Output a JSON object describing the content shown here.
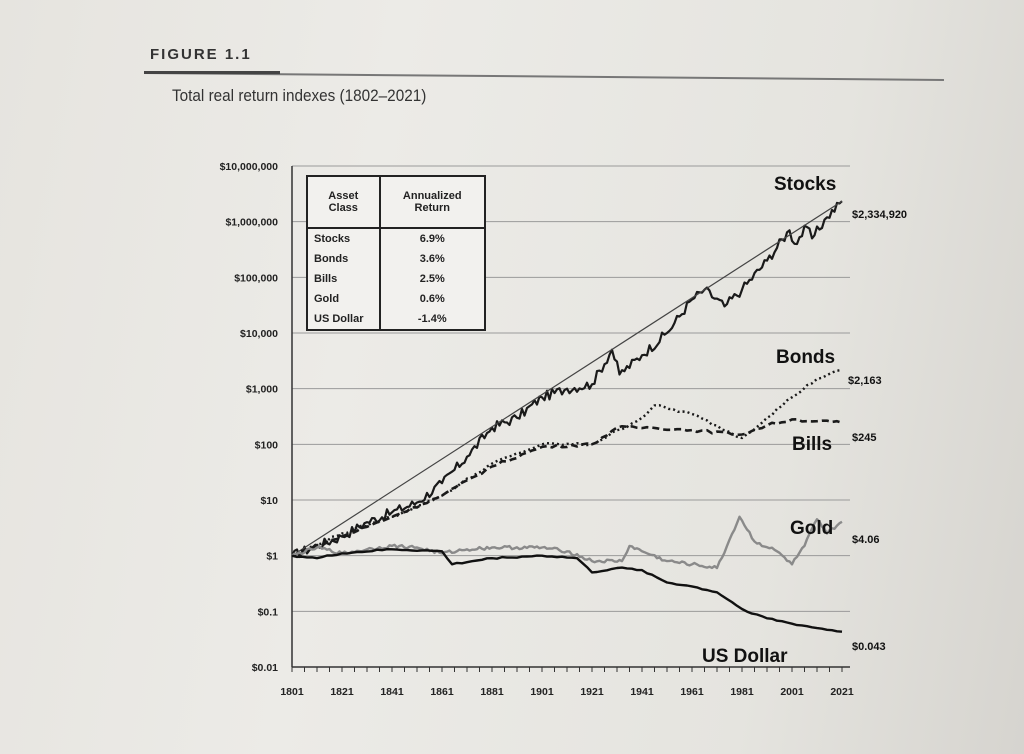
{
  "figure": {
    "label": "FIGURE 1.1",
    "title": "Total real return indexes (1802–2021)"
  },
  "colors": {
    "stocks": "#1a1a1a",
    "bonds": "#1a1a1a",
    "bills": "#1a1a1a",
    "gold": "#8a8a8a",
    "usd": "#111111",
    "trend": "#444444"
  },
  "table": {
    "headers": [
      "Asset Class",
      "Annualized Return"
    ],
    "rows": [
      {
        "asset": "Stocks",
        "return": "6.9%"
      },
      {
        "asset": "Bonds",
        "return": "3.6%"
      },
      {
        "asset": "Bills",
        "return": "2.5%"
      },
      {
        "asset": "Gold",
        "return": "0.6%"
      },
      {
        "asset": "US Dollar",
        "return": "-1.4%"
      }
    ]
  },
  "chart_data": {
    "type": "line",
    "scale": "log",
    "ylim": [
      0.01,
      10000000
    ],
    "xlim": [
      1801,
      2021
    ],
    "grid": true,
    "y_ticks": [
      {
        "value": 10000000,
        "label": "$10,000,000"
      },
      {
        "value": 1000000,
        "label": "$1,000,000"
      },
      {
        "value": 100000,
        "label": "$100,000"
      },
      {
        "value": 10000,
        "label": "$10,000"
      },
      {
        "value": 1000,
        "label": "$1,000"
      },
      {
        "value": 100,
        "label": "$100"
      },
      {
        "value": 10,
        "label": "$10"
      },
      {
        "value": 1,
        "label": "$1"
      },
      {
        "value": 0.1,
        "label": "$0.1"
      },
      {
        "value": 0.01,
        "label": "$0.01"
      }
    ],
    "x_ticks": [
      {
        "value": 1801,
        "label": "1801"
      },
      {
        "value": 1821,
        "label": "1821"
      },
      {
        "value": 1841,
        "label": "1841"
      },
      {
        "value": 1861,
        "label": "1861"
      },
      {
        "value": 1881,
        "label": "1881"
      },
      {
        "value": 1901,
        "label": "1901"
      },
      {
        "value": 1921,
        "label": "1921"
      },
      {
        "value": 1941,
        "label": "1941"
      },
      {
        "value": 1961,
        "label": "1961"
      },
      {
        "value": 1981,
        "label": "1981"
      },
      {
        "value": 2001,
        "label": "2001"
      },
      {
        "value": 2021,
        "label": "2021"
      }
    ],
    "series": [
      {
        "name": "Stocks",
        "style": "solid",
        "end_label": "$2,334,920",
        "points": [
          [
            1801,
            1
          ],
          [
            1811,
            1.5
          ],
          [
            1821,
            2.2
          ],
          [
            1831,
            4
          ],
          [
            1841,
            6
          ],
          [
            1851,
            9
          ],
          [
            1861,
            20
          ],
          [
            1871,
            60
          ],
          [
            1881,
            200
          ],
          [
            1891,
            300
          ],
          [
            1901,
            700
          ],
          [
            1911,
            1000
          ],
          [
            1921,
            1200
          ],
          [
            1929,
            5000
          ],
          [
            1932,
            1800
          ],
          [
            1941,
            4000
          ],
          [
            1951,
            10000
          ],
          [
            1961,
            40000
          ],
          [
            1966,
            60000
          ],
          [
            1974,
            30000
          ],
          [
            1981,
            60000
          ],
          [
            1991,
            200000
          ],
          [
            2000,
            700000
          ],
          [
            2002,
            400000
          ],
          [
            2007,
            800000
          ],
          [
            2009,
            500000
          ],
          [
            2015,
            1200000
          ],
          [
            2021,
            2334920
          ]
        ]
      },
      {
        "name": "Trend",
        "style": "trend",
        "end_label": "",
        "points": [
          [
            1801,
            1
          ],
          [
            2021,
            2334920
          ]
        ]
      },
      {
        "name": "Bonds",
        "style": "dotted",
        "end_label": "$2,163",
        "points": [
          [
            1801,
            1
          ],
          [
            1821,
            2.5
          ],
          [
            1841,
            5
          ],
          [
            1861,
            12
          ],
          [
            1881,
            45
          ],
          [
            1901,
            100
          ],
          [
            1921,
            100
          ],
          [
            1941,
            300
          ],
          [
            1946,
            500
          ],
          [
            1961,
            350
          ],
          [
            1981,
            130
          ],
          [
            1991,
            300
          ],
          [
            2001,
            700
          ],
          [
            2011,
            1500
          ],
          [
            2021,
            2163
          ]
        ]
      },
      {
        "name": "Bills",
        "style": "dashed",
        "end_label": "$245",
        "points": [
          [
            1801,
            1
          ],
          [
            1821,
            2.2
          ],
          [
            1841,
            5
          ],
          [
            1861,
            12
          ],
          [
            1881,
            40
          ],
          [
            1901,
            90
          ],
          [
            1921,
            100
          ],
          [
            1931,
            200
          ],
          [
            1945,
            200
          ],
          [
            1961,
            180
          ],
          [
            1981,
            150
          ],
          [
            1991,
            220
          ],
          [
            2001,
            280
          ],
          [
            2011,
            260
          ],
          [
            2021,
            245
          ]
        ]
      },
      {
        "name": "Gold",
        "style": "gray",
        "end_label": "$4.06",
        "points": [
          [
            1801,
            1
          ],
          [
            1811,
            1.4
          ],
          [
            1821,
            1.1
          ],
          [
            1831,
            1.3
          ],
          [
            1841,
            1.5
          ],
          [
            1851,
            1.4
          ],
          [
            1861,
            1.1
          ],
          [
            1871,
            1.3
          ],
          [
            1881,
            1.4
          ],
          [
            1901,
            1.4
          ],
          [
            1911,
            1.2
          ],
          [
            1921,
            0.8
          ],
          [
            1933,
            0.8
          ],
          [
            1936,
            1.5
          ],
          [
            1941,
            1.2
          ],
          [
            1951,
            0.8
          ],
          [
            1961,
            0.7
          ],
          [
            1971,
            0.6
          ],
          [
            1975,
            1.5
          ],
          [
            1980,
            5
          ],
          [
            1986,
            1.8
          ],
          [
            1995,
            1.2
          ],
          [
            2001,
            0.7
          ],
          [
            2006,
            1.5
          ],
          [
            2011,
            4.5
          ],
          [
            2015,
            2.5
          ],
          [
            2021,
            4.06
          ]
        ]
      },
      {
        "name": "US Dollar",
        "style": "solid-thick",
        "end_label": "$0.043",
        "points": [
          [
            1801,
            1
          ],
          [
            1811,
            0.9
          ],
          [
            1821,
            1.1
          ],
          [
            1841,
            1.3
          ],
          [
            1861,
            1.2
          ],
          [
            1865,
            0.7
          ],
          [
            1881,
            0.9
          ],
          [
            1901,
            1.0
          ],
          [
            1915,
            0.9
          ],
          [
            1921,
            0.5
          ],
          [
            1931,
            0.6
          ],
          [
            1941,
            0.55
          ],
          [
            1951,
            0.33
          ],
          [
            1961,
            0.28
          ],
          [
            1971,
            0.22
          ],
          [
            1981,
            0.11
          ],
          [
            1991,
            0.075
          ],
          [
            2001,
            0.06
          ],
          [
            2011,
            0.05
          ],
          [
            2021,
            0.043
          ]
        ]
      }
    ]
  }
}
